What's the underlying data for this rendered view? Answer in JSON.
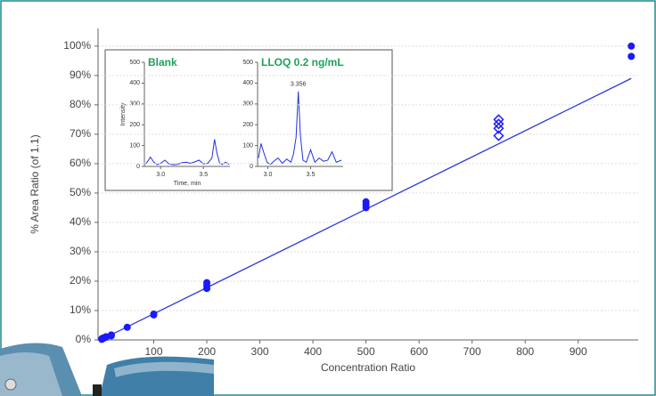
{
  "chart_data": [
    {
      "type": "scatter",
      "y_label": "% Area Ratio (of 1.1)",
      "x_label": "Concentration Ratio",
      "xlim": [
        -5,
        1013
      ],
      "ylim": [
        0,
        106
      ],
      "xticks": [
        100,
        200,
        300,
        400,
        500,
        600,
        700,
        800,
        900
      ],
      "yticks": [
        {
          "value": 0,
          "label": "0%"
        },
        {
          "value": 10,
          "label": "10%"
        },
        {
          "value": 20,
          "label": "20%"
        },
        {
          "value": 30,
          "label": "30%"
        },
        {
          "value": 40,
          "label": "40%"
        },
        {
          "value": 50,
          "label": "50%"
        },
        {
          "value": 60,
          "label": "60%"
        },
        {
          "value": 70,
          "label": "70%"
        },
        {
          "value": 80,
          "label": "80%"
        },
        {
          "value": 90,
          "label": "90%"
        },
        {
          "value": 100,
          "label": "100%"
        }
      ],
      "grid": true,
      "fit_line": {
        "color": "#2b3bd6",
        "x": [
          0,
          1000
        ],
        "values": [
          0,
          89
        ]
      },
      "series": [
        {
          "color": "#1a1aff",
          "marker": "circle",
          "x": [
            2,
            2,
            5,
            5,
            10,
            10,
            20,
            20,
            50,
            100,
            100,
            200,
            200,
            200,
            500,
            500,
            500,
            1000,
            1000
          ],
          "values": [
            0.2,
            0.4,
            0.5,
            0.7,
            0.9,
            1.1,
            1.4,
            1.7,
            4.3,
            8.5,
            8.8,
            17.5,
            18.5,
            19.5,
            45,
            46,
            47,
            96.5,
            100
          ]
        },
        {
          "color": "#1a1aff",
          "marker": "hollow-diamond",
          "x": [
            750,
            750,
            750,
            750
          ],
          "values": [
            69.5,
            72,
            73.5,
            75
          ]
        }
      ]
    },
    {
      "type": "line",
      "title": "Blank",
      "y_label": "Intensity",
      "x_label": "Time, min",
      "xlim": [
        2.81,
        3.81
      ],
      "ylim": [
        0,
        500
      ],
      "xticks": [
        {
          "value": 3,
          "label": "3.0"
        },
        3.5
      ],
      "yticks": [
        0,
        100,
        200,
        300,
        400,
        500
      ],
      "color": "#2233dd",
      "x": [
        2.82,
        2.85,
        2.88,
        2.92,
        2.96,
        3.0,
        3.05,
        3.1,
        3.15,
        3.2,
        3.25,
        3.3,
        3.35,
        3.4,
        3.45,
        3.5,
        3.55,
        3.6,
        3.63,
        3.66,
        3.69,
        3.72,
        3.76,
        3.8
      ],
      "values": [
        10,
        25,
        45,
        20,
        8,
        15,
        30,
        12,
        8,
        10,
        18,
        20,
        15,
        22,
        30,
        12,
        15,
        40,
        130,
        60,
        15,
        10,
        20,
        10
      ]
    },
    {
      "type": "line",
      "title": "LLOQ 0.2 ng/mL",
      "annotation": "3.356",
      "xlim": [
        2.88,
        3.88
      ],
      "ylim": [
        0,
        500
      ],
      "xticks": [
        {
          "value": 3,
          "label": "3.0"
        },
        3.5
      ],
      "yticks": [
        0,
        100,
        200,
        300,
        400,
        500
      ],
      "color": "#2233dd",
      "x": [
        2.89,
        2.92,
        2.95,
        2.99,
        3.03,
        3.07,
        3.12,
        3.17,
        3.22,
        3.27,
        3.3,
        3.33,
        3.356,
        3.38,
        3.41,
        3.45,
        3.5,
        3.55,
        3.6,
        3.65,
        3.7,
        3.75,
        3.8,
        3.86
      ],
      "values": [
        40,
        110,
        70,
        20,
        10,
        25,
        40,
        15,
        35,
        20,
        60,
        140,
        360,
        150,
        30,
        20,
        80,
        20,
        40,
        25,
        30,
        70,
        20,
        30
      ]
    }
  ]
}
